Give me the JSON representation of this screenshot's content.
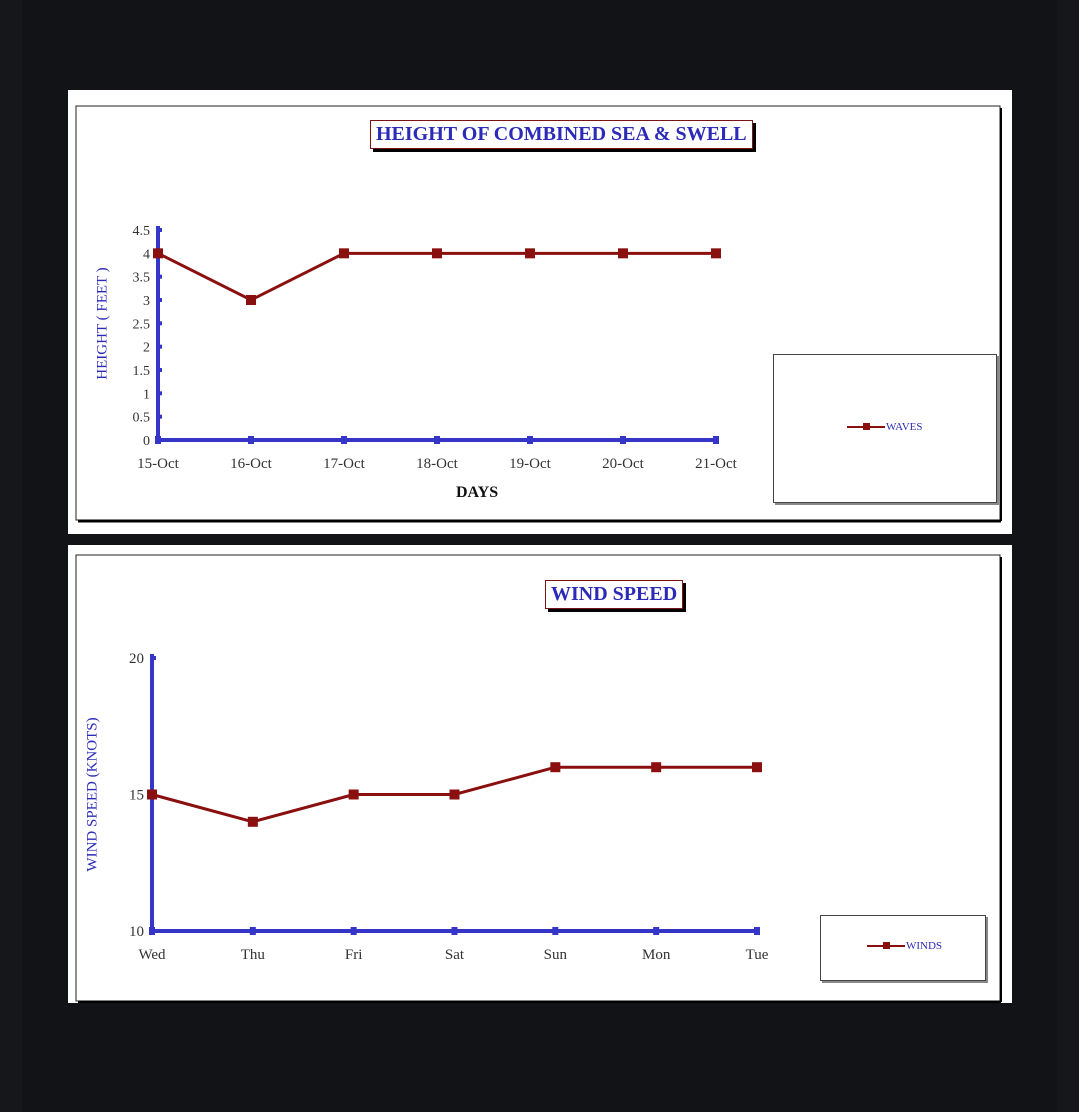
{
  "charts": [
    {
      "title": "HEIGHT OF COMBINED SEA & SWELL",
      "ylabel": "HEIGHT ( FEET )",
      "xlabel": "DAYS",
      "legend": "WAVES"
    },
    {
      "title": "WIND SPEED",
      "ylabel": "WIND SPEED (KNOTS)",
      "xlabel": "",
      "legend": "WINDS"
    }
  ],
  "colors": {
    "axis": "#3535c8",
    "series": "#8a0f0f",
    "text": "#2b2bb8"
  },
  "chart_data": [
    {
      "type": "line",
      "title": "HEIGHT OF COMBINED SEA & SWELL",
      "xlabel": "DAYS",
      "ylabel": "HEIGHT ( FEET )",
      "categories": [
        "15-Oct",
        "16-Oct",
        "17-Oct",
        "18-Oct",
        "19-Oct",
        "20-Oct",
        "21-Oct"
      ],
      "series": [
        {
          "name": "WAVES",
          "values": [
            4,
            3,
            4,
            4,
            4,
            4,
            4
          ]
        }
      ],
      "yticks": [
        "0",
        "0.5",
        "1",
        "1.5",
        "2",
        "2.5",
        "3",
        "3.5",
        "4",
        "4.5"
      ],
      "ylim": [
        0,
        4.5
      ],
      "grid": false,
      "legend_position": "right"
    },
    {
      "type": "line",
      "title": "WIND SPEED",
      "xlabel": "",
      "ylabel": "WIND SPEED (KNOTS)",
      "categories": [
        "Wed",
        "Thu",
        "Fri",
        "Sat",
        "Sun",
        "Mon",
        "Tue"
      ],
      "series": [
        {
          "name": "WINDS",
          "values": [
            15,
            14,
            15,
            15,
            16,
            16,
            16
          ]
        }
      ],
      "yticks": [
        "10",
        "15",
        "20"
      ],
      "ylim": [
        10,
        20
      ],
      "grid": false,
      "legend_position": "bottom-right"
    }
  ]
}
